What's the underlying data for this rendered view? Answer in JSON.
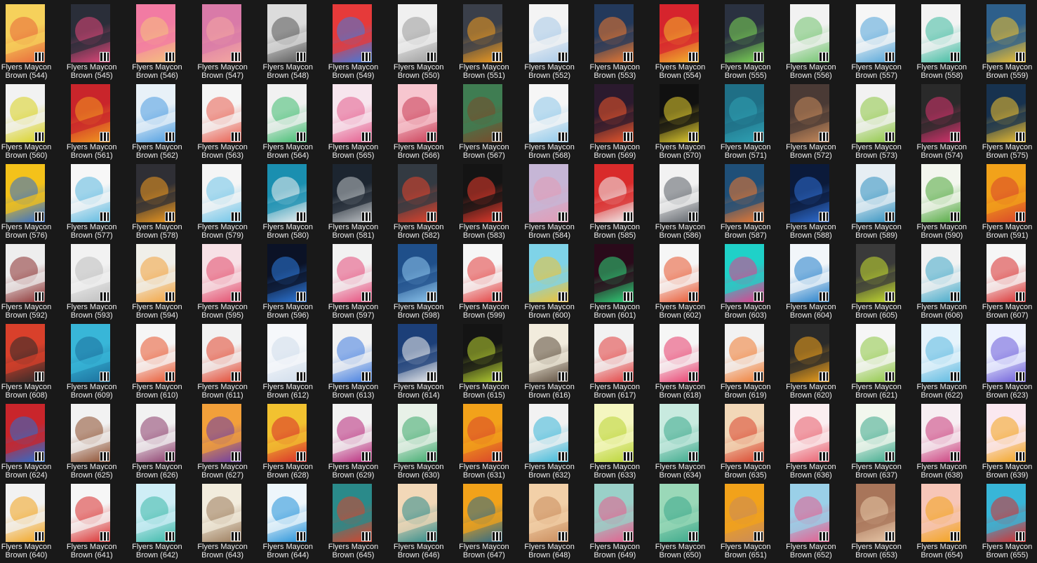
{
  "window": {
    "background": "#191919",
    "view": "Large icons"
  },
  "items": [
    {
      "line1": "Flyers Maycon",
      "line2": "Brown (544)",
      "c1": "#f6d15b",
      "c2": "#e8663a"
    },
    {
      "line1": "Flyers Maycon",
      "line2": "Brown (545)",
      "c1": "#2a2e39",
      "c2": "#e2477a"
    },
    {
      "line1": "Flyers Maycon",
      "line2": "Brown (546)",
      "c1": "#f27ba3",
      "c2": "#f5c27d"
    },
    {
      "line1": "Flyers Maycon",
      "line2": "Brown (547)",
      "c1": "#d97aa8",
      "c2": "#f4a8a0"
    },
    {
      "line1": "Flyers Maycon",
      "line2": "Brown (548)",
      "c1": "#dcdcdc",
      "c2": "#555555"
    },
    {
      "line1": "Flyers Maycon",
      "line2": "Brown (549)",
      "c1": "#e63a3a",
      "c2": "#3f7be0"
    },
    {
      "line1": "Flyers Maycon",
      "line2": "Brown (550)",
      "c1": "#f0f0f0",
      "c2": "#9a9a9a"
    },
    {
      "line1": "Flyers Maycon",
      "line2": "Brown (551)",
      "c1": "#3a3f4a",
      "c2": "#f29c1f"
    },
    {
      "line1": "Flyers Maycon",
      "line2": "Brown (552)",
      "c1": "#f4f4f4",
      "c2": "#a6c8e8"
    },
    {
      "line1": "Flyers Maycon",
      "line2": "Brown (553)",
      "c1": "#23395b",
      "c2": "#f07a30"
    },
    {
      "line1": "Flyers Maycon",
      "line2": "Brown (554)",
      "c1": "#d6242d",
      "c2": "#f3b72b"
    },
    {
      "line1": "Flyers Maycon",
      "line2": "Brown (555)",
      "c1": "#2a3140",
      "c2": "#7ed957"
    },
    {
      "line1": "Flyers Maycon",
      "line2": "Brown (556)",
      "c1": "#f2f2f2",
      "c2": "#6fc36b"
    },
    {
      "line1": "Flyers Maycon",
      "line2": "Brown (557)",
      "c1": "#f6f6f6",
      "c2": "#4fa3d8"
    },
    {
      "line1": "Flyers Maycon",
      "line2": "Brown (558)",
      "c1": "#f3f3f3",
      "c2": "#3cba9f"
    },
    {
      "line1": "Flyers Maycon",
      "line2": "Brown (559)",
      "c1": "#2d5f8b",
      "c2": "#f2c230"
    },
    {
      "line1": "Flyers Maycon",
      "line2": "Brown (560)",
      "c1": "#f2f2f2",
      "c2": "#d8d11c"
    },
    {
      "line1": "Flyers Maycon",
      "line2": "Brown (561)",
      "c1": "#c9252b",
      "c2": "#f29b1f"
    },
    {
      "line1": "Flyers Maycon",
      "line2": "Brown (562)",
      "c1": "#e8f1f8",
      "c2": "#4a9be0"
    },
    {
      "line1": "Flyers Maycon",
      "line2": "Brown (563)",
      "c1": "#f5f5f5",
      "c2": "#e85b4c"
    },
    {
      "line1": "Flyers Maycon",
      "line2": "Brown (564)",
      "c1": "#f1f1f1",
      "c2": "#3dbb6d"
    },
    {
      "line1": "Flyers Maycon",
      "line2": "Brown (565)",
      "c1": "#f7e6ee",
      "c2": "#e45b8c"
    },
    {
      "line1": "Flyers Maycon",
      "line2": "Brown (566)",
      "c1": "#f7c6cf",
      "c2": "#c93b54"
    },
    {
      "line1": "Flyers Maycon",
      "line2": "Brown (567)",
      "c1": "#3f7d52",
      "c2": "#7a4a2a"
    },
    {
      "line1": "Flyers Maycon",
      "line2": "Brown (568)",
      "c1": "#f6f6f6",
      "c2": "#8cc7ea"
    },
    {
      "line1": "Flyers Maycon",
      "line2": "Brown (569)",
      "c1": "#2b1a2e",
      "c2": "#f0582c"
    },
    {
      "line1": "Flyers Maycon",
      "line2": "Brown (570)",
      "c1": "#101010",
      "c2": "#e8d22f"
    },
    {
      "line1": "Flyers Maycon",
      "line2": "Brown (571)",
      "c1": "#1f6f86",
      "c2": "#2fa3b5"
    },
    {
      "line1": "Flyers Maycon",
      "line2": "Brown (572)",
      "c1": "#4a3a35",
      "c2": "#c98b5b"
    },
    {
      "line1": "Flyers Maycon",
      "line2": "Brown (573)",
      "c1": "#f2f2f2",
      "c2": "#8cc63f"
    },
    {
      "line1": "Flyers Maycon",
      "line2": "Brown (574)",
      "c1": "#2a2a2a",
      "c2": "#d9336e"
    },
    {
      "line1": "Flyers Maycon",
      "line2": "Brown (575)",
      "c1": "#17324f",
      "c2": "#f2c230"
    },
    {
      "line1": "Flyers Maycon",
      "line2": "Brown (576)",
      "c1": "#f4c21a",
      "c2": "#2e6dd1"
    },
    {
      "line1": "Flyers Maycon",
      "line2": "Brown (577)",
      "c1": "#f7f7f7",
      "c2": "#5ab8e0"
    },
    {
      "line1": "Flyers Maycon",
      "line2": "Brown (578)",
      "c1": "#2f2f35",
      "c2": "#f29b1f"
    },
    {
      "line1": "Flyers Maycon",
      "line2": "Brown (579)",
      "c1": "#f5f5f5",
      "c2": "#6cc3e8"
    },
    {
      "line1": "Flyers Maycon",
      "line2": "Brown (580)",
      "c1": "#1a8fb0",
      "c2": "#f2f2f2"
    },
    {
      "line1": "Flyers Maycon",
      "line2": "Brown (581)",
      "c1": "#1c2530",
      "c2": "#c0c4c8"
    },
    {
      "line1": "Flyers Maycon",
      "line2": "Brown (582)",
      "c1": "#333a42",
      "c2": "#e6432c"
    },
    {
      "line1": "Flyers Maycon",
      "line2": "Brown (583)",
      "c1": "#141414",
      "c2": "#e83a2c"
    },
    {
      "line1": "Flyers Maycon",
      "line2": "Brown (584)",
      "c1": "#c6b6d6",
      "c2": "#e39bb5"
    },
    {
      "line1": "Flyers Maycon",
      "line2": "Brown (585)",
      "c1": "#d92b2b",
      "c2": "#f2f2f2"
    },
    {
      "line1": "Flyers Maycon",
      "line2": "Brown (586)",
      "c1": "#f2f2f2",
      "c2": "#5a5f66"
    },
    {
      "line1": "Flyers Maycon",
      "line2": "Brown (587)",
      "c1": "#1f4f78",
      "c2": "#f07a30"
    },
    {
      "line1": "Flyers Maycon",
      "line2": "Brown (588)",
      "c1": "#0b1a3a",
      "c2": "#2f6fd6"
    },
    {
      "line1": "Flyers Maycon",
      "line2": "Brown (589)",
      "c1": "#e6eef3",
      "c2": "#2e8fbf"
    },
    {
      "line1": "Flyers Maycon",
      "line2": "Brown (590)",
      "c1": "#f3f6ee",
      "c2": "#4da63b"
    },
    {
      "line1": "Flyers Maycon",
      "line2": "Brown (591)",
      "c1": "#f2a21a",
      "c2": "#d9432b"
    },
    {
      "line1": "Flyers Maycon",
      "line2": "Brown (592)",
      "c1": "#eeeeee",
      "c2": "#8a2e2e"
    },
    {
      "line1": "Flyers Maycon",
      "line2": "Brown (593)",
      "c1": "#f2f2f2",
      "c2": "#bdbdbd"
    },
    {
      "line1": "Flyers Maycon",
      "line2": "Brown (594)",
      "c1": "#f0efe9",
      "c2": "#f2a13a"
    },
    {
      "line1": "Flyers Maycon",
      "line2": "Brown (595)",
      "c1": "#f7e1e6",
      "c2": "#e24a6a"
    },
    {
      "line1": "Flyers Maycon",
      "line2": "Brown (596)",
      "c1": "#0b1226",
      "c2": "#2e7be0"
    },
    {
      "line1": "Flyers Maycon",
      "line2": "Brown (597)",
      "c1": "#f2f2f2",
      "c2": "#e64a7a"
    },
    {
      "line1": "Flyers Maycon",
      "line2": "Brown (598)",
      "c1": "#1f4f8a",
      "c2": "#8fc8f0"
    },
    {
      "line1": "Flyers Maycon",
      "line2": "Brown (599)",
      "c1": "#f6f6f6",
      "c2": "#e23b3b"
    },
    {
      "line1": "Flyers Maycon",
      "line2": "Brown (600)",
      "c1": "#7fd3e8",
      "c2": "#f2c230"
    },
    {
      "line1": "Flyers Maycon",
      "line2": "Brown (601)",
      "c1": "#2a0a1a",
      "c2": "#2fd67a"
    },
    {
      "line1": "Flyers Maycon",
      "line2": "Brown (602)",
      "c1": "#f6f6f6",
      "c2": "#e8532c"
    },
    {
      "line1": "Flyers Maycon",
      "line2": "Brown (603)",
      "c1": "#1fd1c8",
      "c2": "#e83a8c"
    },
    {
      "line1": "Flyers Maycon",
      "line2": "Brown (604)",
      "c1": "#f2f6fa",
      "c2": "#1f7cc8"
    },
    {
      "line1": "Flyers Maycon",
      "line2": "Brown (605)",
      "c1": "#3a3a3a",
      "c2": "#c8e02f"
    },
    {
      "line1": "Flyers Maycon",
      "line2": "Brown (606)",
      "c1": "#f2f2f2",
      "c2": "#3fa7c8"
    },
    {
      "line1": "Flyers Maycon",
      "line2": "Brown (607)",
      "c1": "#f6f6f6",
      "c2": "#d92b2b"
    },
    {
      "line1": "Flyers Maycon",
      "line2": "Brown (608)",
      "c1": "#d9402b",
      "c2": "#2a2a2a"
    },
    {
      "line1": "Flyers Maycon",
      "line2": "Brown (609)",
      "c1": "#38b6d8",
      "c2": "#1b6e9b"
    },
    {
      "line1": "Flyers Maycon",
      "line2": "Brown (610)",
      "c1": "#f6f6f6",
      "c2": "#e8532c"
    },
    {
      "line1": "Flyers Maycon",
      "line2": "Brown (611)",
      "c1": "#f2f2f2",
      "c2": "#e2432c"
    },
    {
      "line1": "Flyers Maycon",
      "line2": "Brown (612)",
      "c1": "#f6f8fb",
      "c2": "#cfdceb"
    },
    {
      "line1": "Flyers Maycon",
      "line2": "Brown (613)",
      "c1": "#f2f2f2",
      "c2": "#3f7be0"
    },
    {
      "line1": "Flyers Maycon",
      "line2": "Brown (614)",
      "c1": "#1c3f78",
      "c2": "#f2f2f2"
    },
    {
      "line1": "Flyers Maycon",
      "line2": "Brown (615)",
      "c1": "#141414",
      "c2": "#b9d432"
    },
    {
      "line1": "Flyers Maycon",
      "line2": "Brown (616)",
      "c1": "#f2ecdd",
      "c2": "#5a4a3a"
    },
    {
      "line1": "Flyers Maycon",
      "line2": "Brown (617)",
      "c1": "#f2f2f2",
      "c2": "#e23b3b"
    },
    {
      "line1": "Flyers Maycon",
      "line2": "Brown (618)",
      "c1": "#f6f6f6",
      "c2": "#e83a6a"
    },
    {
      "line1": "Flyers Maycon",
      "line2": "Brown (619)",
      "c1": "#f2f2f2",
      "c2": "#f07a30"
    },
    {
      "line1": "Flyers Maycon",
      "line2": "Brown (620)",
      "c1": "#2a2a2a",
      "c2": "#f2a21a"
    },
    {
      "line1": "Flyers Maycon",
      "line2": "Brown (621)",
      "c1": "#f6f6f6",
      "c2": "#8cc63f"
    },
    {
      "line1": "Flyers Maycon",
      "line2": "Brown (622)",
      "c1": "#e6f3fb",
      "c2": "#5ab8e0"
    },
    {
      "line1": "Flyers Maycon",
      "line2": "Brown (623)",
      "c1": "#eef2ff",
      "c2": "#6a5ad8"
    },
    {
      "line1": "Flyers Maycon",
      "line2": "Brown (624)",
      "c1": "#c9252b",
      "c2": "#2a6fd1"
    },
    {
      "line1": "Flyers Maycon",
      "line2": "Brown (625)",
      "c1": "#f2f2f2",
      "c2": "#8a4a2a"
    },
    {
      "line1": "Flyers Maycon",
      "line2": "Brown (626)",
      "c1": "#f2f2f2",
      "c2": "#8a3a6a"
    },
    {
      "line1": "Flyers Maycon",
      "line2": "Brown (627)",
      "c1": "#f2a03a",
      "c2": "#6a3aa8"
    },
    {
      "line1": "Flyers Maycon",
      "line2": "Brown (628)",
      "c1": "#f2c230",
      "c2": "#d92b2b"
    },
    {
      "line1": "Flyers Maycon",
      "line2": "Brown (629)",
      "c1": "#f2f2f2",
      "c2": "#b8277a"
    },
    {
      "line1": "Flyers Maycon",
      "line2": "Brown (630)",
      "c1": "#e8f1e8",
      "c2": "#3aa86a"
    },
    {
      "line1": "Flyers Maycon",
      "line2": "Brown (631)",
      "c1": "#f2a21a",
      "c2": "#d9432b"
    },
    {
      "line1": "Flyers Maycon",
      "line2": "Brown (632)",
      "c1": "#f2f2f2",
      "c2": "#38b6d8"
    },
    {
      "line1": "Flyers Maycon",
      "line2": "Brown (633)",
      "c1": "#f4f6c0",
      "c2": "#b9d432"
    },
    {
      "line1": "Flyers Maycon",
      "line2": "Brown (634)",
      "c1": "#c8eadf",
      "c2": "#3aa88a"
    },
    {
      "line1": "Flyers Maycon",
      "line2": "Brown (635)",
      "c1": "#f2d8b8",
      "c2": "#d9432b"
    },
    {
      "line1": "Flyers Maycon",
      "line2": "Brown (636)",
      "c1": "#fbeef0",
      "c2": "#e85b6a"
    },
    {
      "line1": "Flyers Maycon",
      "line2": "Brown (637)",
      "c1": "#f2f7ee",
      "c2": "#3aa88a"
    },
    {
      "line1": "Flyers Maycon",
      "line2": "Brown (638)",
      "c1": "#f7eef2",
      "c2": "#c93b7a"
    },
    {
      "line1": "Flyers Maycon",
      "line2": "Brown (639)",
      "c1": "#fbe8f0",
      "c2": "#f2a21a"
    },
    {
      "line1": "Flyers Maycon",
      "line2": "Brown (640)",
      "c1": "#f2f2f2",
      "c2": "#f2a21a"
    },
    {
      "line1": "Flyers Maycon",
      "line2": "Brown (641)",
      "c1": "#f6f6f6",
      "c2": "#d92b2b"
    },
    {
      "line1": "Flyers Maycon",
      "line2": "Brown (642)",
      "c1": "#cfeef6",
      "c2": "#3ab8a8"
    },
    {
      "line1": "Flyers Maycon",
      "line2": "Brown (643)",
      "c1": "#f2ecdd",
      "c2": "#9a7a5a"
    },
    {
      "line1": "Flyers Maycon",
      "line2": "Brown (644)",
      "c1": "#eef6fb",
      "c2": "#1f8fd8"
    },
    {
      "line1": "Flyers Maycon",
      "line2": "Brown (645)",
      "c1": "#2a8a8a",
      "c2": "#d9432b"
    },
    {
      "line1": "Flyers Maycon",
      "line2": "Brown (646)",
      "c1": "#f2d8b8",
      "c2": "#2a8a8a"
    },
    {
      "line1": "Flyers Maycon",
      "line2": "Brown (647)",
      "c1": "#f2a21a",
      "c2": "#2a6a8a"
    },
    {
      "line1": "Flyers Maycon",
      "line2": "Brown (648)",
      "c1": "#f2d0a8",
      "c2": "#c98b5b"
    },
    {
      "line1": "Flyers Maycon",
      "line2": "Brown (649)",
      "c1": "#9ad0c8",
      "c2": "#e85b8c"
    },
    {
      "line1": "Flyers Maycon",
      "line2": "Brown (650)",
      "c1": "#9ad8b8",
      "c2": "#3aa88a"
    },
    {
      "line1": "Flyers Maycon",
      "line2": "Brown (651)",
      "c1": "#f2a21a",
      "c2": "#c98b5b"
    },
    {
      "line1": "Flyers Maycon",
      "line2": "Brown (652)",
      "c1": "#9ad0e8",
      "c2": "#e85b8c"
    },
    {
      "line1": "Flyers Maycon",
      "line2": "Brown (653)",
      "c1": "#a8755a",
      "c2": "#e8c8a8"
    },
    {
      "line1": "Flyers Maycon",
      "line2": "Brown (654)",
      "c1": "#f7c6b8",
      "c2": "#f2a21a"
    },
    {
      "line1": "Flyers Maycon",
      "line2": "Brown (655)",
      "c1": "#38b6d8",
      "c2": "#d92b2b"
    }
  ]
}
